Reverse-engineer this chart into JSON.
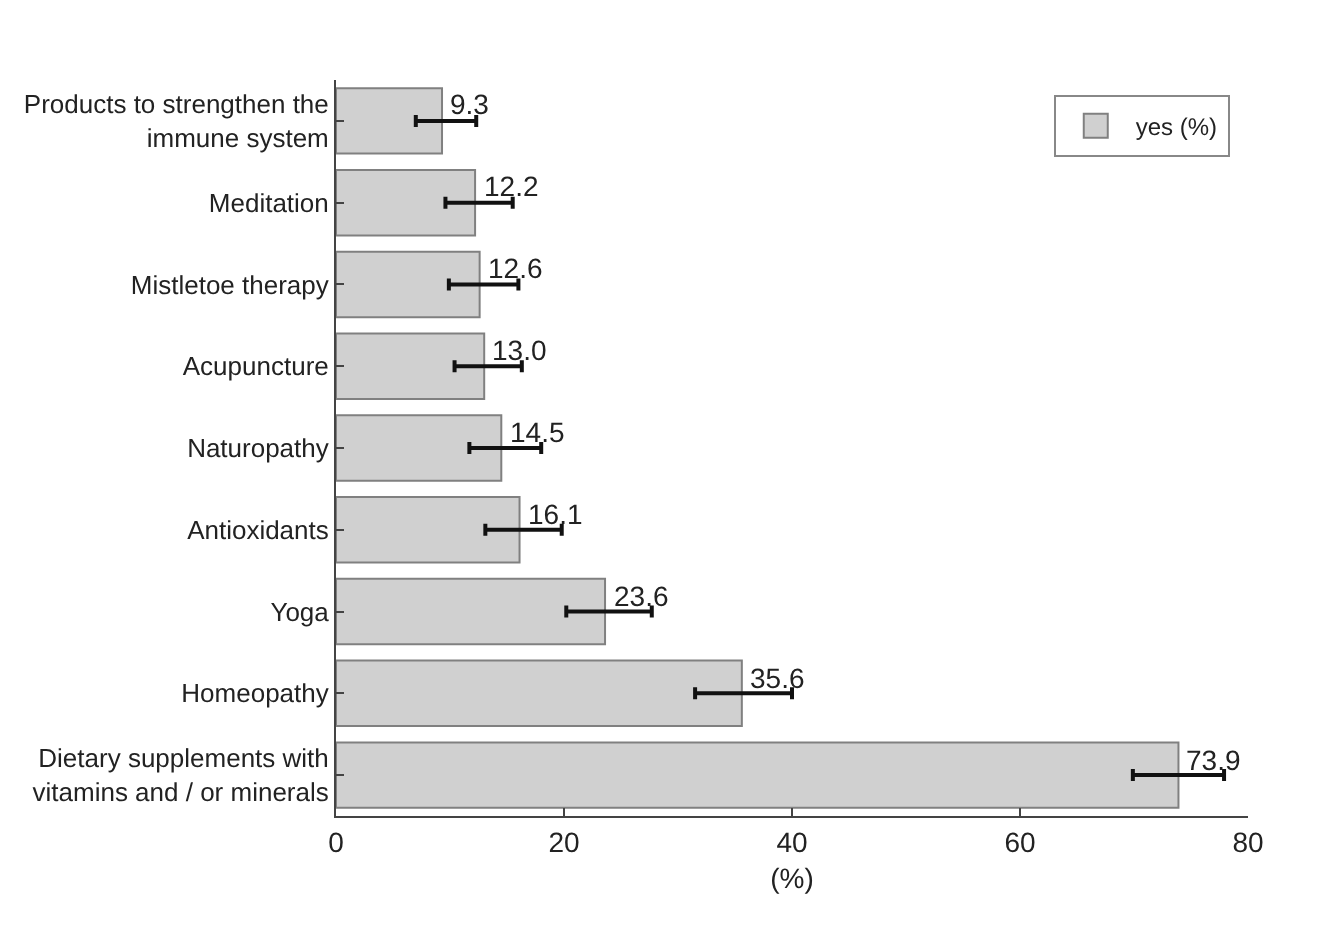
{
  "chart_data": {
    "type": "bar",
    "orientation": "horizontal",
    "xlabel": "(%)",
    "categories": [
      "Products to strengthen the immune system",
      "Meditation",
      "Mistletoe therapy",
      "Acupuncture",
      "Naturopathy",
      "Antioxidants",
      "Yoga",
      "Homeopathy",
      "Dietary supplements with vitamins and / or minerals"
    ],
    "series": [
      {
        "name": "yes (%)",
        "color": "#d0d0d0",
        "values": [
          9.3,
          12.2,
          12.6,
          13.0,
          14.5,
          16.1,
          23.6,
          35.6,
          73.9
        ],
        "value_labels": [
          "9.3",
          "12.2",
          "12.6",
          "13.0",
          "14.5",
          "16.1",
          "23.6",
          "35.6",
          "73.9"
        ],
        "errors": [
          [
            7.0,
            12.3
          ],
          [
            9.6,
            15.5
          ],
          [
            9.9,
            16.0
          ],
          [
            10.4,
            16.3
          ],
          [
            11.7,
            18.0
          ],
          [
            13.1,
            19.8
          ],
          [
            20.2,
            27.7
          ],
          [
            31.5,
            40.0
          ],
          [
            69.9,
            77.9
          ]
        ]
      }
    ],
    "xlim": [
      0,
      80
    ],
    "xticks": [
      0,
      20,
      40,
      60,
      80
    ],
    "legend": "top right"
  }
}
